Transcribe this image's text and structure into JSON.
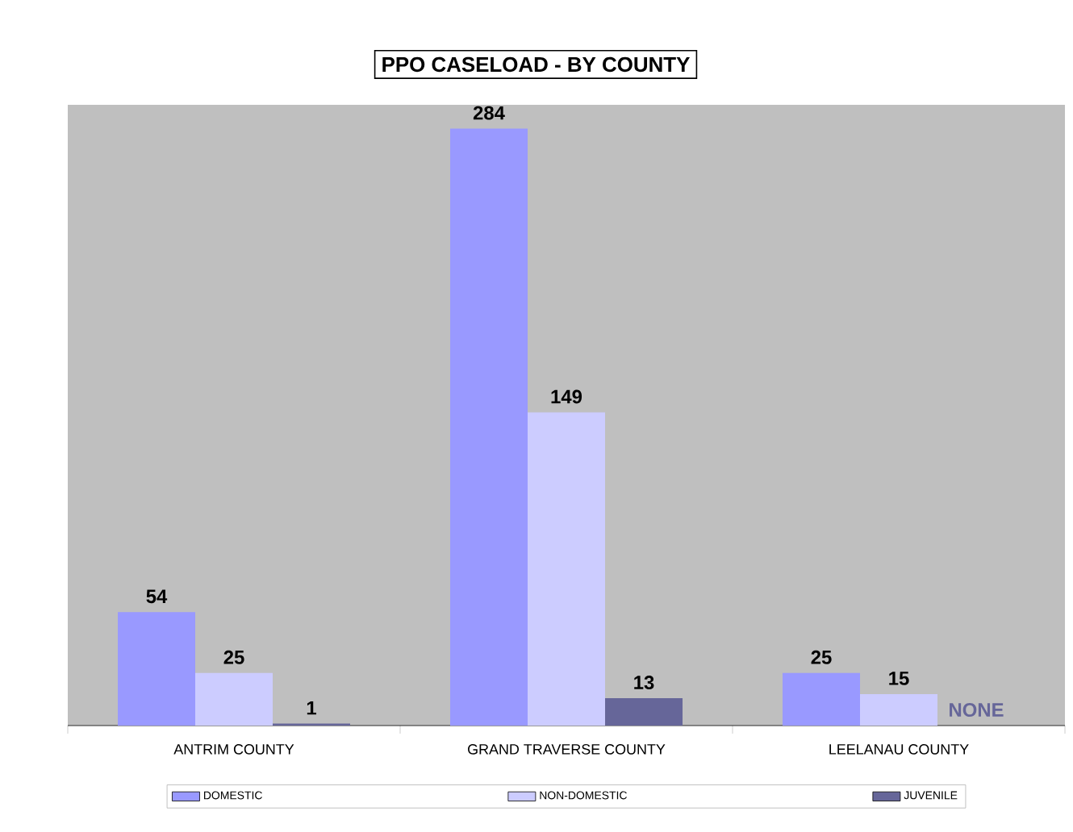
{
  "chart_data": {
    "type": "bar",
    "title": "PPO CASELOAD - BY COUNTY",
    "categories": [
      "ANTRIM COUNTY",
      "GRAND TRAVERSE COUNTY",
      "LEELANAU COUNTY"
    ],
    "series": [
      {
        "name": "DOMESTIC",
        "color": "#9999ff",
        "values": [
          54,
          284,
          25
        ],
        "value_labels": [
          "54",
          "284",
          "25"
        ]
      },
      {
        "name": "NON-DOMESTIC",
        "color": "#ccccff",
        "values": [
          25,
          149,
          15
        ],
        "value_labels": [
          "25",
          "149",
          "15"
        ]
      },
      {
        "name": "JUVENILE",
        "color": "#666699",
        "values": [
          1,
          13,
          null
        ],
        "value_labels": [
          "1",
          "13",
          "NONE"
        ]
      }
    ],
    "legend": "bottom"
  }
}
